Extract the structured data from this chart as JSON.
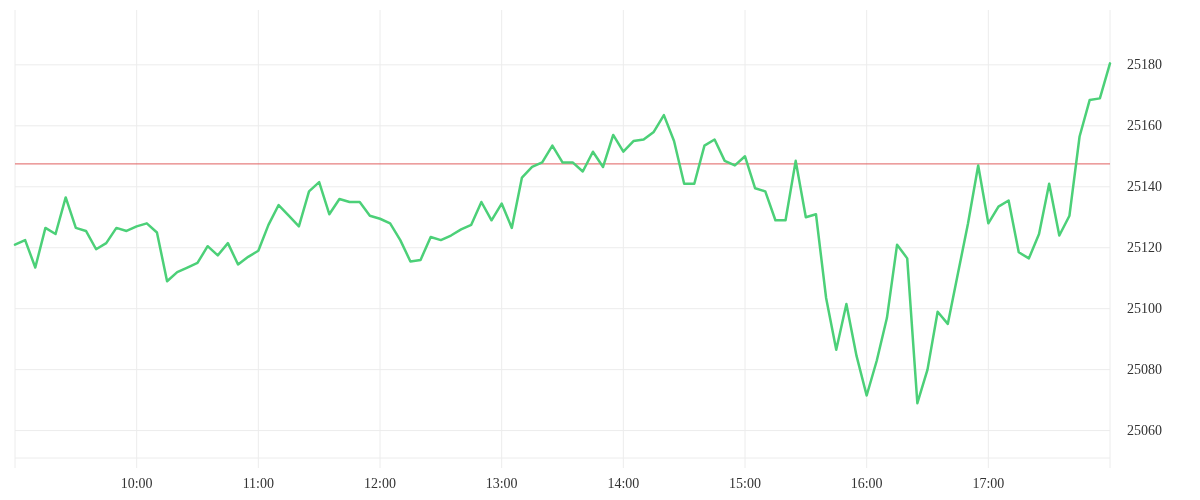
{
  "chart_data": {
    "type": "line",
    "x": [
      9,
      9.0833,
      9.1667,
      9.25,
      9.3333,
      9.4167,
      9.5,
      9.5833,
      9.6667,
      9.75,
      9.8333,
      9.9167,
      10,
      10.0833,
      10.1667,
      10.25,
      10.3333,
      10.4167,
      10.5,
      10.5833,
      10.6667,
      10.75,
      10.8333,
      10.9167,
      11,
      11.0833,
      11.1667,
      11.25,
      11.3333,
      11.4167,
      11.5,
      11.5833,
      11.6667,
      11.75,
      11.8333,
      11.9167,
      12,
      12.0833,
      12.1667,
      12.25,
      12.3333,
      12.4167,
      12.5,
      12.5833,
      12.6667,
      12.75,
      12.8333,
      12.9167,
      13,
      13.0833,
      13.1667,
      13.25,
      13.3333,
      13.4167,
      13.5,
      13.5833,
      13.6667,
      13.75,
      13.8333,
      13.9167,
      14,
      14.0833,
      14.1667,
      14.25,
      14.3333,
      14.4167,
      14.5,
      14.5833,
      14.6667,
      14.75,
      14.8333,
      14.9167,
      15,
      15.0833,
      15.1667,
      15.25,
      15.3333,
      15.4167,
      15.5,
      15.5833,
      15.6667,
      15.75,
      15.8333,
      15.9167,
      16,
      16.0833,
      16.1667,
      16.25,
      16.3333,
      16.4167,
      16.5,
      16.5833,
      16.6667,
      16.75,
      16.8333,
      16.9167,
      17,
      17.0833,
      17.1667,
      17.25,
      17.3333,
      17.4167,
      17.5,
      17.5833,
      17.6667,
      17.75,
      17.8333,
      17.9167,
      18
    ],
    "series": [
      {
        "color": "#4cd078",
        "values": [
          25121,
          25122.5,
          25113.5,
          25126.5,
          25124.5,
          25136.5,
          25126.5,
          25125.5,
          25119.5,
          25121.5,
          25126.5,
          25125.5,
          25127,
          25128,
          25125,
          25109,
          25112,
          25113.5,
          25115,
          25120.5,
          25117.5,
          25121.5,
          25114.5,
          25117,
          25119,
          25127.5,
          25134,
          25130.5,
          25127,
          25138.5,
          25141.5,
          25131,
          25136,
          25135,
          25135,
          25130.5,
          25129.5,
          25128,
          25122.5,
          25115.5,
          25116,
          25123.5,
          25122.5,
          25124,
          25126,
          25127.5,
          25135,
          25129,
          25134.5,
          25126.5,
          25143,
          25146.5,
          25148,
          25153.5,
          25148,
          25148,
          25145,
          25151.5,
          25146.5,
          25157,
          25151.5,
          25155,
          25155.5,
          25158,
          25163.5,
          25155,
          25141,
          25141,
          25153.5,
          25155.5,
          25148.5,
          25147,
          25150,
          25139.5,
          25138.5,
          25129,
          25129,
          25148.5,
          25130,
          25131,
          25103.5,
          25086.5,
          25101.5,
          25084.5,
          25071.5,
          25083,
          25097,
          25121,
          25116.5,
          25069,
          25080,
          25099,
          25095,
          25111.5,
          25128,
          25147,
          25128,
          25133.5,
          25135.5,
          25118.5,
          25116.5,
          25124.5,
          25141,
          25124,
          25130.5,
          25156.5,
          25168.5,
          25169,
          25180.5
        ]
      }
    ],
    "xlim": [
      9,
      18
    ],
    "xticks": [
      {
        "value": 9,
        "label": null
      },
      {
        "value": 10,
        "label": "10:00"
      },
      {
        "value": 11,
        "label": "11:00"
      },
      {
        "value": 12,
        "label": "12:00"
      },
      {
        "value": 13,
        "label": "13:00"
      },
      {
        "value": 14,
        "label": "14:00"
      },
      {
        "value": 15,
        "label": "15:00"
      },
      {
        "value": 16,
        "label": "16:00"
      },
      {
        "value": 17,
        "label": "17:00"
      },
      {
        "value": 18,
        "label": null
      }
    ],
    "ylim": [
      25051,
      25198
    ],
    "yticks": [
      25060,
      25080,
      25100,
      25120,
      25140,
      25160,
      25180
    ],
    "grid": true,
    "ref_lines": [
      {
        "axis": "y",
        "value": 25147.5,
        "color": "#e06060"
      }
    ]
  }
}
